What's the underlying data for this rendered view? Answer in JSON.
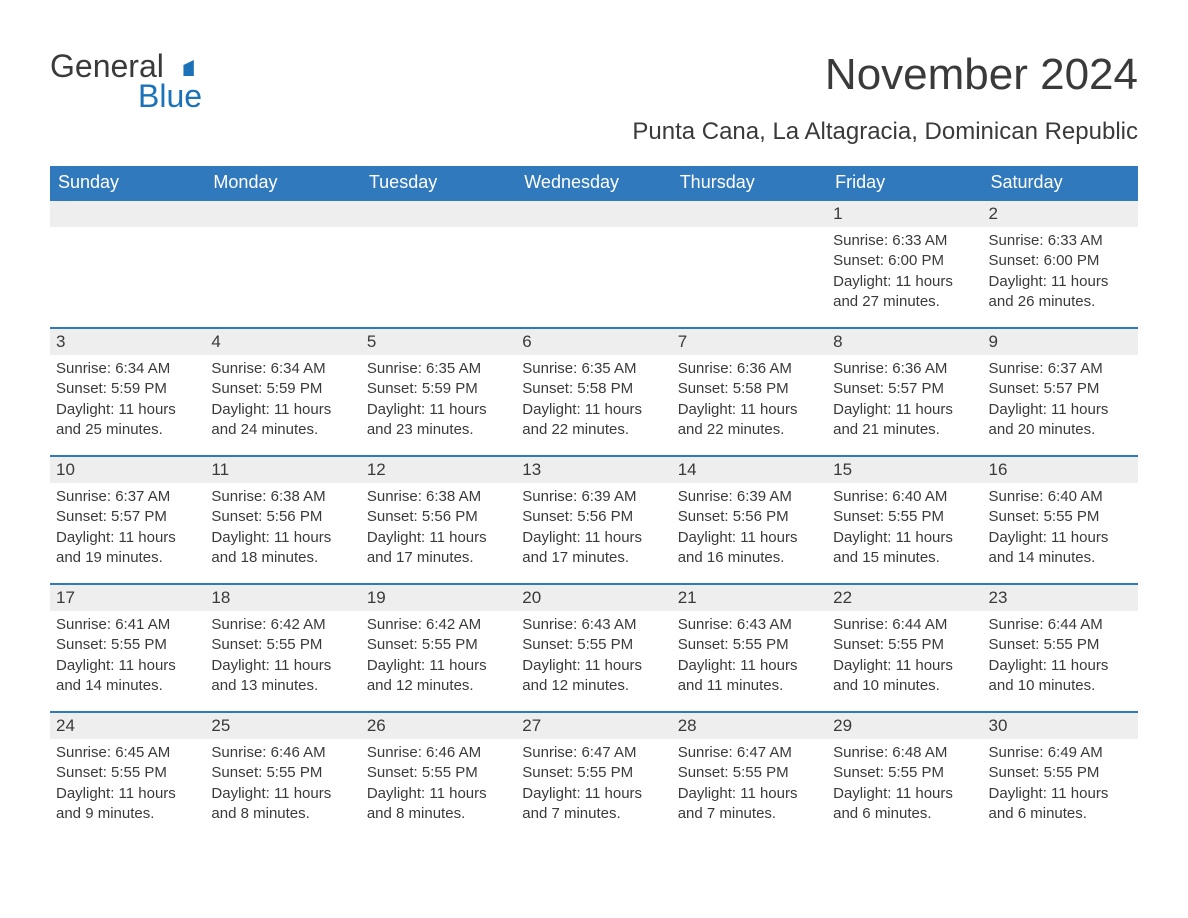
{
  "logo": {
    "text1": "General",
    "text2": "Blue"
  },
  "title": "November 2024",
  "location": "Punta Cana, La Altagracia, Dominican Republic",
  "columns": [
    "Sunday",
    "Monday",
    "Tuesday",
    "Wednesday",
    "Thursday",
    "Friday",
    "Saturday"
  ],
  "header_bg": "#3179bd",
  "header_text_color": "#ffffff",
  "row_border_color": "#3179bd",
  "daynum_bg": "#eeeeee",
  "text_color": "#3a3a3a",
  "body_bg": "#ffffff",
  "accent_color": "#1c72b8",
  "title_fontsize": 44,
  "location_fontsize": 24,
  "weekday_fontsize": 18,
  "body_fontsize": 15,
  "weeks": [
    [
      {
        "day": null
      },
      {
        "day": null
      },
      {
        "day": null
      },
      {
        "day": null
      },
      {
        "day": null
      },
      {
        "day": 1,
        "sunrise": "Sunrise: 6:33 AM",
        "sunset": "Sunset: 6:00 PM",
        "daylight1": "Daylight: 11 hours",
        "daylight2": "and 27 minutes."
      },
      {
        "day": 2,
        "sunrise": "Sunrise: 6:33 AM",
        "sunset": "Sunset: 6:00 PM",
        "daylight1": "Daylight: 11 hours",
        "daylight2": "and 26 minutes."
      }
    ],
    [
      {
        "day": 3,
        "sunrise": "Sunrise: 6:34 AM",
        "sunset": "Sunset: 5:59 PM",
        "daylight1": "Daylight: 11 hours",
        "daylight2": "and 25 minutes."
      },
      {
        "day": 4,
        "sunrise": "Sunrise: 6:34 AM",
        "sunset": "Sunset: 5:59 PM",
        "daylight1": "Daylight: 11 hours",
        "daylight2": "and 24 minutes."
      },
      {
        "day": 5,
        "sunrise": "Sunrise: 6:35 AM",
        "sunset": "Sunset: 5:59 PM",
        "daylight1": "Daylight: 11 hours",
        "daylight2": "and 23 minutes."
      },
      {
        "day": 6,
        "sunrise": "Sunrise: 6:35 AM",
        "sunset": "Sunset: 5:58 PM",
        "daylight1": "Daylight: 11 hours",
        "daylight2": "and 22 minutes."
      },
      {
        "day": 7,
        "sunrise": "Sunrise: 6:36 AM",
        "sunset": "Sunset: 5:58 PM",
        "daylight1": "Daylight: 11 hours",
        "daylight2": "and 22 minutes."
      },
      {
        "day": 8,
        "sunrise": "Sunrise: 6:36 AM",
        "sunset": "Sunset: 5:57 PM",
        "daylight1": "Daylight: 11 hours",
        "daylight2": "and 21 minutes."
      },
      {
        "day": 9,
        "sunrise": "Sunrise: 6:37 AM",
        "sunset": "Sunset: 5:57 PM",
        "daylight1": "Daylight: 11 hours",
        "daylight2": "and 20 minutes."
      }
    ],
    [
      {
        "day": 10,
        "sunrise": "Sunrise: 6:37 AM",
        "sunset": "Sunset: 5:57 PM",
        "daylight1": "Daylight: 11 hours",
        "daylight2": "and 19 minutes."
      },
      {
        "day": 11,
        "sunrise": "Sunrise: 6:38 AM",
        "sunset": "Sunset: 5:56 PM",
        "daylight1": "Daylight: 11 hours",
        "daylight2": "and 18 minutes."
      },
      {
        "day": 12,
        "sunrise": "Sunrise: 6:38 AM",
        "sunset": "Sunset: 5:56 PM",
        "daylight1": "Daylight: 11 hours",
        "daylight2": "and 17 minutes."
      },
      {
        "day": 13,
        "sunrise": "Sunrise: 6:39 AM",
        "sunset": "Sunset: 5:56 PM",
        "daylight1": "Daylight: 11 hours",
        "daylight2": "and 17 minutes."
      },
      {
        "day": 14,
        "sunrise": "Sunrise: 6:39 AM",
        "sunset": "Sunset: 5:56 PM",
        "daylight1": "Daylight: 11 hours",
        "daylight2": "and 16 minutes."
      },
      {
        "day": 15,
        "sunrise": "Sunrise: 6:40 AM",
        "sunset": "Sunset: 5:55 PM",
        "daylight1": "Daylight: 11 hours",
        "daylight2": "and 15 minutes."
      },
      {
        "day": 16,
        "sunrise": "Sunrise: 6:40 AM",
        "sunset": "Sunset: 5:55 PM",
        "daylight1": "Daylight: 11 hours",
        "daylight2": "and 14 minutes."
      }
    ],
    [
      {
        "day": 17,
        "sunrise": "Sunrise: 6:41 AM",
        "sunset": "Sunset: 5:55 PM",
        "daylight1": "Daylight: 11 hours",
        "daylight2": "and 14 minutes."
      },
      {
        "day": 18,
        "sunrise": "Sunrise: 6:42 AM",
        "sunset": "Sunset: 5:55 PM",
        "daylight1": "Daylight: 11 hours",
        "daylight2": "and 13 minutes."
      },
      {
        "day": 19,
        "sunrise": "Sunrise: 6:42 AM",
        "sunset": "Sunset: 5:55 PM",
        "daylight1": "Daylight: 11 hours",
        "daylight2": "and 12 minutes."
      },
      {
        "day": 20,
        "sunrise": "Sunrise: 6:43 AM",
        "sunset": "Sunset: 5:55 PM",
        "daylight1": "Daylight: 11 hours",
        "daylight2": "and 12 minutes."
      },
      {
        "day": 21,
        "sunrise": "Sunrise: 6:43 AM",
        "sunset": "Sunset: 5:55 PM",
        "daylight1": "Daylight: 11 hours",
        "daylight2": "and 11 minutes."
      },
      {
        "day": 22,
        "sunrise": "Sunrise: 6:44 AM",
        "sunset": "Sunset: 5:55 PM",
        "daylight1": "Daylight: 11 hours",
        "daylight2": "and 10 minutes."
      },
      {
        "day": 23,
        "sunrise": "Sunrise: 6:44 AM",
        "sunset": "Sunset: 5:55 PM",
        "daylight1": "Daylight: 11 hours",
        "daylight2": "and 10 minutes."
      }
    ],
    [
      {
        "day": 24,
        "sunrise": "Sunrise: 6:45 AM",
        "sunset": "Sunset: 5:55 PM",
        "daylight1": "Daylight: 11 hours",
        "daylight2": "and 9 minutes."
      },
      {
        "day": 25,
        "sunrise": "Sunrise: 6:46 AM",
        "sunset": "Sunset: 5:55 PM",
        "daylight1": "Daylight: 11 hours",
        "daylight2": "and 8 minutes."
      },
      {
        "day": 26,
        "sunrise": "Sunrise: 6:46 AM",
        "sunset": "Sunset: 5:55 PM",
        "daylight1": "Daylight: 11 hours",
        "daylight2": "and 8 minutes."
      },
      {
        "day": 27,
        "sunrise": "Sunrise: 6:47 AM",
        "sunset": "Sunset: 5:55 PM",
        "daylight1": "Daylight: 11 hours",
        "daylight2": "and 7 minutes."
      },
      {
        "day": 28,
        "sunrise": "Sunrise: 6:47 AM",
        "sunset": "Sunset: 5:55 PM",
        "daylight1": "Daylight: 11 hours",
        "daylight2": "and 7 minutes."
      },
      {
        "day": 29,
        "sunrise": "Sunrise: 6:48 AM",
        "sunset": "Sunset: 5:55 PM",
        "daylight1": "Daylight: 11 hours",
        "daylight2": "and 6 minutes."
      },
      {
        "day": 30,
        "sunrise": "Sunrise: 6:49 AM",
        "sunset": "Sunset: 5:55 PM",
        "daylight1": "Daylight: 11 hours",
        "daylight2": "and 6 minutes."
      }
    ]
  ]
}
